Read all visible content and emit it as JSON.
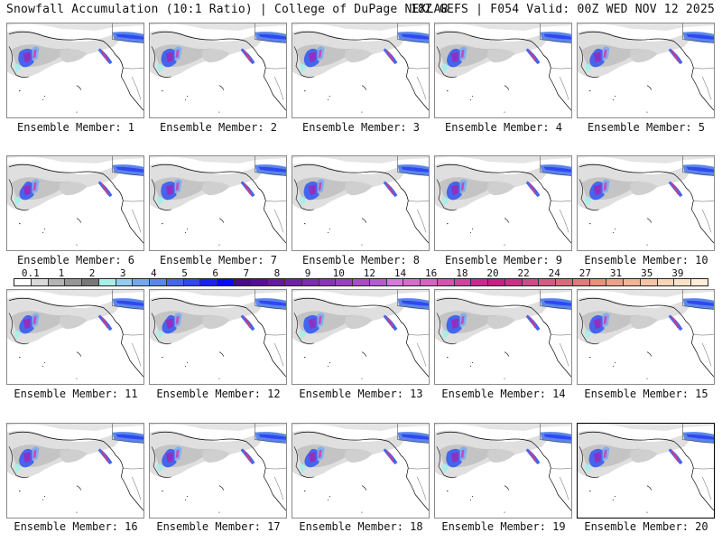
{
  "header": {
    "left": "Snowfall Accumulation (10:1 Ratio) | College of DuPage NEXLAB",
    "right": "18Z GEFS | F054 Valid: 00Z WED NOV 12 2025"
  },
  "panels": [
    {
      "label": "Ensemble Member: 1"
    },
    {
      "label": "Ensemble Member: 2"
    },
    {
      "label": "Ensemble Member: 3"
    },
    {
      "label": "Ensemble Member: 4"
    },
    {
      "label": "Ensemble Member: 5"
    },
    {
      "label": "Ensemble Member: 6"
    },
    {
      "label": "Ensemble Member: 7"
    },
    {
      "label": "Ensemble Member: 8"
    },
    {
      "label": "Ensemble Member: 9"
    },
    {
      "label": "Ensemble Member: 10"
    },
    {
      "label": "Ensemble Member: 11"
    },
    {
      "label": "Ensemble Member: 12"
    },
    {
      "label": "Ensemble Member: 13"
    },
    {
      "label": "Ensemble Member: 14"
    },
    {
      "label": "Ensemble Member: 15"
    },
    {
      "label": "Ensemble Member: 16"
    },
    {
      "label": "Ensemble Member: 17"
    },
    {
      "label": "Ensemble Member: 18"
    },
    {
      "label": "Ensemble Member: 19"
    },
    {
      "label": "Ensemble Member: 20",
      "selected": true
    }
  ],
  "legend": {
    "ticks": [
      "0.1",
      "1",
      "2",
      "3",
      "4",
      "5",
      "6",
      "7",
      "8",
      "9",
      "10",
      "12",
      "14",
      "16",
      "18",
      "20",
      "22",
      "24",
      "27",
      "31",
      "35",
      "39"
    ],
    "colors": [
      "#ffffff",
      "#d9d9d9",
      "#b4b4b4",
      "#969696",
      "#787878",
      "#a8eee8",
      "#90cdf0",
      "#74a8ee",
      "#5a86ea",
      "#4466ee",
      "#2f48f0",
      "#1a22f2",
      "#0a0af0",
      "#4a0a8c",
      "#560e96",
      "#621aa0",
      "#6e22a6",
      "#7c2cb0",
      "#8a34b8",
      "#9840c0",
      "#a84cc8",
      "#b65ad0",
      "#d878d8",
      "#d86ccc",
      "#d862c0",
      "#d452b0",
      "#d044a0",
      "#cc2890",
      "#c81e86",
      "#cc2f86",
      "#d04a88",
      "#d45a84",
      "#d86a7c",
      "#e07a7a",
      "#e8907a",
      "#eca288",
      "#f0b494",
      "#f4c4a4",
      "#f8d4b8",
      "#fae2c8",
      "#fdeed8"
    ]
  }
}
